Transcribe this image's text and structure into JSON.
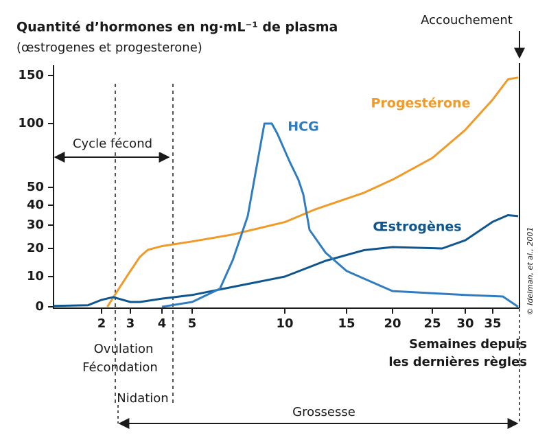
{
  "chart_data": {
    "type": "line",
    "title": "Quantité d’hormones en ng·mL⁻¹ de plasma",
    "subtitle": "(œstrogenes et progesterone)",
    "x_label": [
      "Semaines depuis",
      "les dernières règles"
    ],
    "annotations": {
      "delivery": "Accouchement",
      "fertile_cycle": "Cycle fécond",
      "ovulation": "Ovulation",
      "fertilization": "Fécondation",
      "implantation": "Nidation",
      "pregnancy": "Grossesse",
      "credit": "© Idelman, et al., 2001"
    },
    "xlim": [
      0.5,
      40
    ],
    "xticks": [
      2,
      3,
      4,
      5,
      10,
      15,
      20,
      25,
      30,
      35
    ],
    "ylim": [
      0,
      150
    ],
    "yticks": [
      0,
      10,
      20,
      30,
      40,
      50,
      100,
      150
    ],
    "series": [
      {
        "name": "Progestérone",
        "color": "#f09a28",
        "x": [
          2.2,
          2.6,
          3,
          3.3,
          3.55,
          4,
          5,
          7.2,
          10,
          12.5,
          16.9,
          20,
          25,
          30,
          35,
          38,
          40
        ],
        "values": [
          0,
          6,
          12,
          17,
          19.5,
          21,
          23,
          26,
          31.5,
          38,
          47,
          56,
          73,
          95,
          125,
          146,
          148
        ]
      },
      {
        "name": "Œstrogènes",
        "color": "#0f568e",
        "x": [
          0.5,
          1.57,
          2,
          2.4,
          3,
          3.3,
          4,
          5,
          7.2,
          10,
          13.3,
          16.9,
          20,
          26.5,
          30,
          35,
          38,
          40
        ],
        "values": [
          0.3,
          0.5,
          2.3,
          3.2,
          1.6,
          1.6,
          2.7,
          3.9,
          6.6,
          10,
          15.6,
          19.4,
          20.6,
          20,
          23.5,
          31.7,
          35,
          34.5
        ]
      },
      {
        "name": "HCG",
        "color": "#2f7cc0",
        "x": [
          4,
          5,
          6.5,
          7.2,
          8,
          8.7,
          8.9,
          9.3,
          9.6,
          10.4,
          11.1,
          11.5,
          12,
          13.3,
          15,
          20,
          30,
          37,
          40
        ],
        "values": [
          0,
          1.6,
          6,
          16,
          34.5,
          84,
          100,
          100,
          92,
          70,
          56,
          46,
          28,
          18.5,
          12,
          5.2,
          3.9,
          3.4,
          0
        ]
      }
    ]
  }
}
